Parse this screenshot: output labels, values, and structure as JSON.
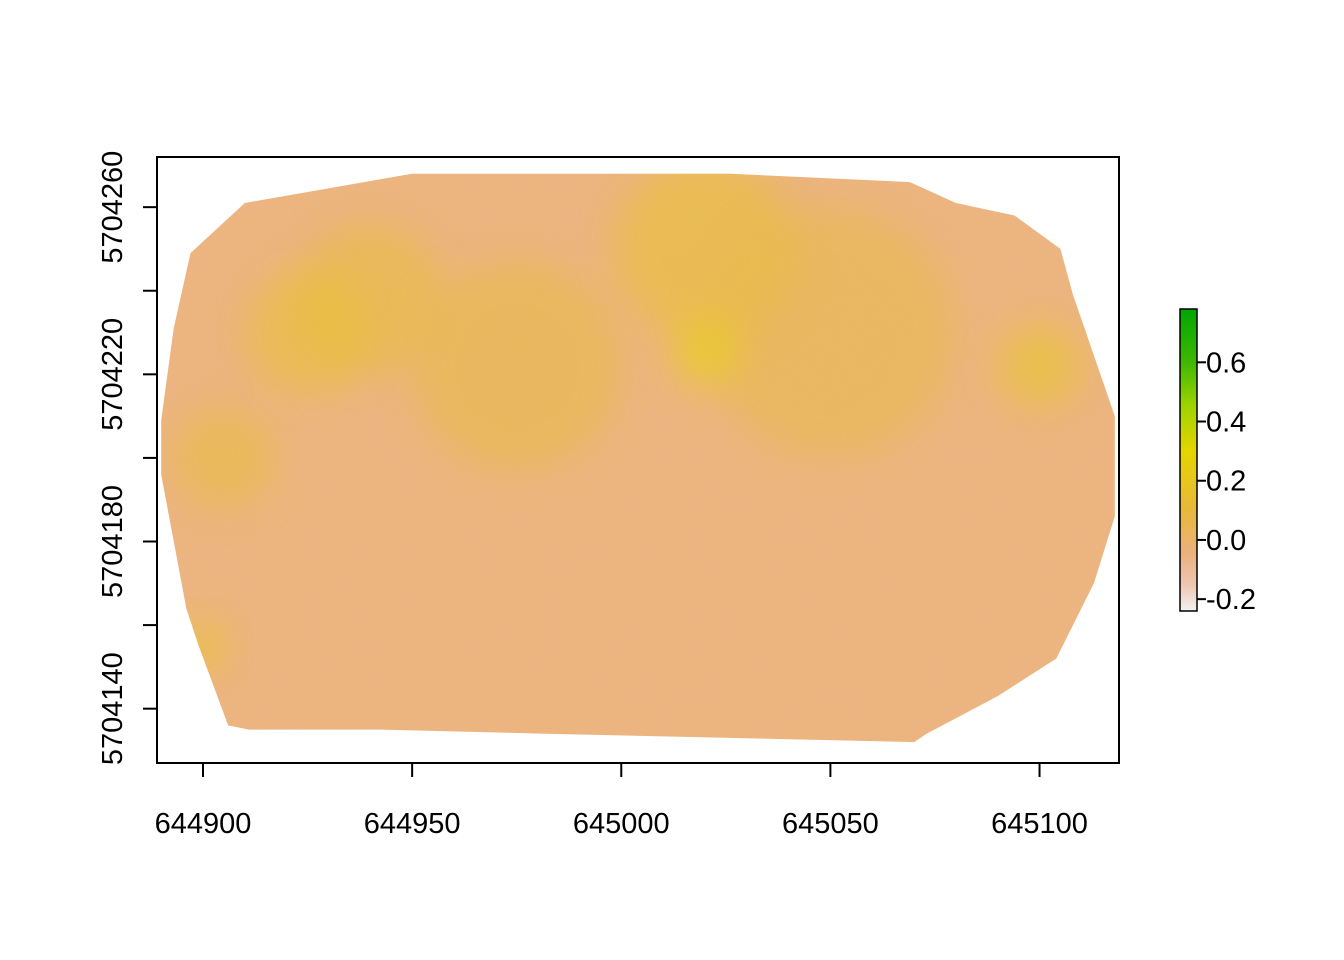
{
  "chart_data": {
    "type": "heatmap",
    "title": "",
    "xlabel": "",
    "ylabel": "",
    "xlim": [
      644889,
      645119
    ],
    "ylim": [
      5704127,
      5704272
    ],
    "x_ticks": [
      644900,
      644950,
      645000,
      645050,
      645100
    ],
    "y_ticks": [
      5704140,
      5704160,
      5704180,
      5704200,
      5704220,
      5704240,
      5704260
    ],
    "y_tick_labels_shown": [
      5704140,
      5704180,
      5704220,
      5704260
    ],
    "legend": {
      "placement": "right",
      "range": [
        -0.24,
        0.78
      ],
      "ticks": [
        -0.2,
        0.0,
        0.2,
        0.4,
        0.6
      ],
      "tick_labels": [
        "-0.2",
        "0.0",
        "0.2",
        "0.4",
        "0.6"
      ],
      "colors": [
        "#f2f2f2",
        "#eec6b0",
        "#ebb17f",
        "#e8b83a",
        "#e6d400",
        "#9fd400",
        "#3fb800",
        "#00a600"
      ],
      "color_stops": [
        -0.24,
        -0.15,
        -0.05,
        0.1,
        0.3,
        0.45,
        0.6,
        0.78
      ]
    },
    "raster": {
      "footprint": [
        [
          644906,
          5704136
        ],
        [
          644911,
          5704135
        ],
        [
          644942,
          5704135
        ],
        [
          644982,
          5704134
        ],
        [
          645070,
          5704132
        ],
        [
          645073,
          5704134
        ],
        [
          645090,
          5704143
        ],
        [
          645104,
          5704152
        ],
        [
          645113,
          5704170
        ],
        [
          645118,
          5704186
        ],
        [
          645118,
          5704210
        ],
        [
          645108,
          5704239
        ],
        [
          645105,
          5704250
        ],
        [
          645094,
          5704258
        ],
        [
          645080,
          5704261
        ],
        [
          645069,
          5704266
        ],
        [
          645026,
          5704268
        ],
        [
          644950,
          5704268
        ],
        [
          644910,
          5704261
        ],
        [
          644897,
          5704249
        ],
        [
          644893,
          5704231
        ],
        [
          644890,
          5704209
        ],
        [
          644890,
          5704196
        ],
        [
          644896,
          5704164
        ],
        [
          644899,
          5704155
        ]
      ],
      "base_value": -0.04,
      "bright_patches": [
        {
          "x": 644940,
          "y": 5704238,
          "r": 18,
          "value": 0.12
        },
        {
          "x": 645020,
          "y": 5704250,
          "r": 22,
          "value": 0.15
        },
        {
          "x": 644925,
          "y": 5704230,
          "r": 15,
          "value": 0.14
        },
        {
          "x": 644975,
          "y": 5704222,
          "r": 25,
          "value": 0.1
        },
        {
          "x": 645050,
          "y": 5704230,
          "r": 30,
          "value": 0.08
        },
        {
          "x": 644905,
          "y": 5704200,
          "r": 12,
          "value": 0.12
        },
        {
          "x": 645020,
          "y": 5704225,
          "r": 8,
          "value": 0.3
        },
        {
          "x": 645100,
          "y": 5704222,
          "r": 10,
          "value": 0.2
        },
        {
          "x": 644900,
          "y": 5704155,
          "r": 6,
          "value": 0.2
        }
      ]
    }
  }
}
